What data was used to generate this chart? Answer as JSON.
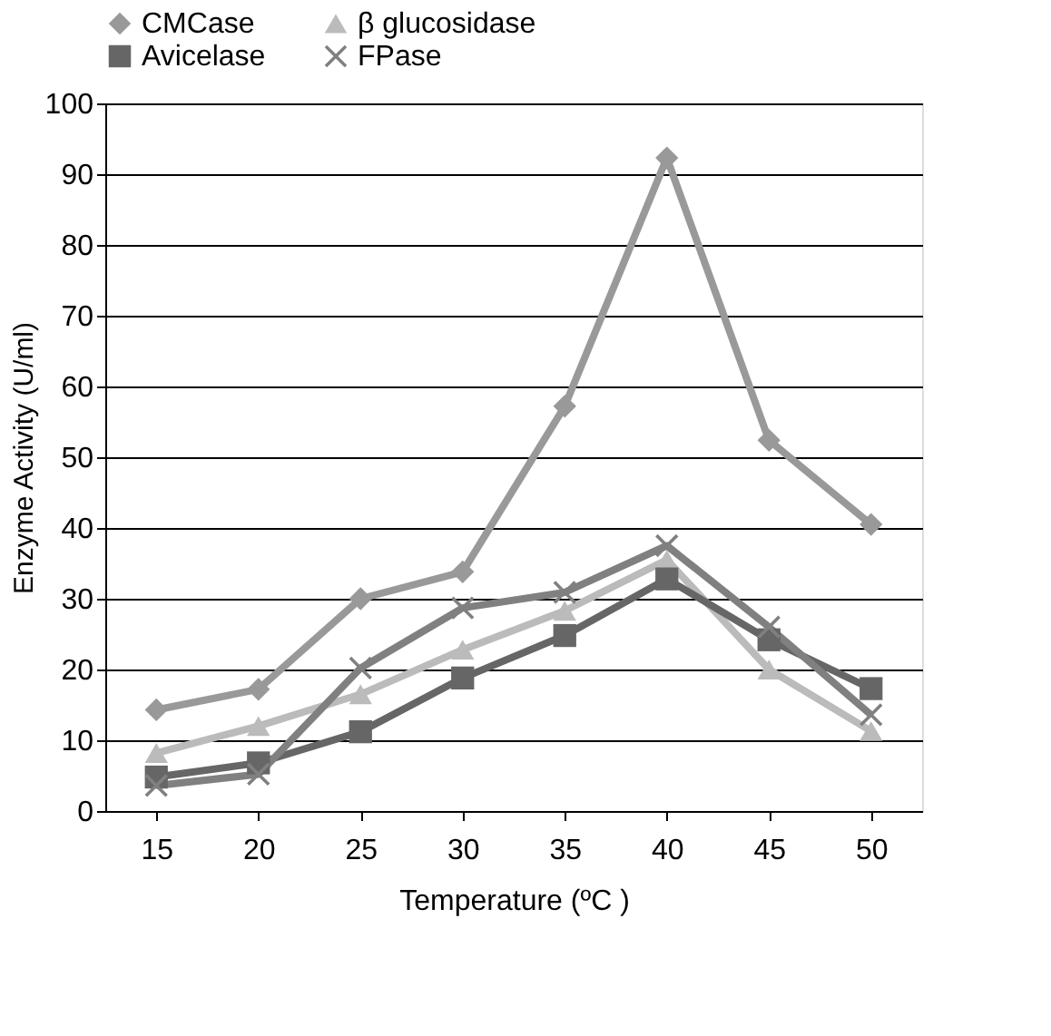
{
  "chart_data": {
    "type": "line",
    "xlabel": "Temperature (ºC )",
    "ylabel": "Enzyme Activity (U/ml)",
    "categories": [
      "15",
      "20",
      "25",
      "30",
      "35",
      "40",
      "45",
      "50"
    ],
    "series": [
      {
        "name": "CMCase",
        "color": "#999999",
        "marker": "diamond",
        "values": [
          14.3,
          17.2,
          30,
          33.8,
          57.2,
          92.3,
          52.4,
          40.5
        ]
      },
      {
        "name": "β glucosidase",
        "color": "#bbbbbb",
        "marker": "triangle",
        "values": [
          8.2,
          12,
          16.5,
          22.8,
          28.3,
          35.5,
          20,
          11.3
        ]
      },
      {
        "name": "Avicelase",
        "color": "#666666",
        "marker": "square",
        "values": [
          4.8,
          6.8,
          11.2,
          18.8,
          24.8,
          32.8,
          24.2,
          17.3
        ]
      },
      {
        "name": "FPase",
        "color": "#808080",
        "marker": "cross",
        "values": [
          3.6,
          5.2,
          20.2,
          28.7,
          30.9,
          37.5,
          26,
          13.6
        ]
      }
    ],
    "ylim": [
      0,
      100
    ],
    "yticks": [
      0,
      10,
      20,
      30,
      40,
      50,
      60,
      70,
      80,
      90,
      100
    ],
    "grid": "y",
    "legend": "top",
    "line_style": "solid"
  }
}
